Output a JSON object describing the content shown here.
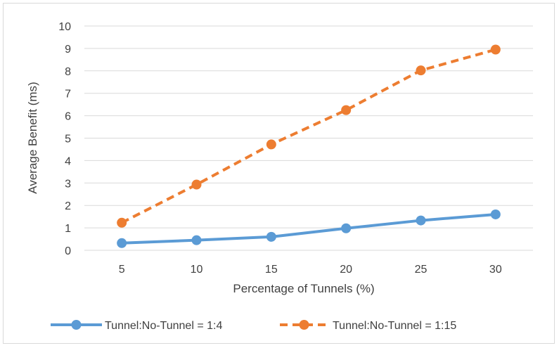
{
  "chart_data": {
    "type": "line",
    "x": [
      5,
      10,
      15,
      20,
      25,
      30
    ],
    "xlabel": "Percentage of Tunnels (%)",
    "ylabel": "Average Benefit (ms)",
    "ylim": [
      0,
      10
    ],
    "yticks": [
      0,
      1,
      2,
      3,
      4,
      5,
      6,
      7,
      8,
      9,
      10
    ],
    "grid": "horizontal",
    "legend_position": "bottom",
    "series": [
      {
        "name": "Tunnel:No-Tunnel = 1:4",
        "values": [
          0.32,
          0.45,
          0.6,
          0.98,
          1.33,
          1.6
        ],
        "color": "#5b9bd5",
        "style": "solid",
        "marker": "circle"
      },
      {
        "name": "Tunnel:No-Tunnel = 1:15",
        "values": [
          1.23,
          2.93,
          4.72,
          6.25,
          8.02,
          8.95
        ],
        "color": "#ed7d31",
        "style": "dashed",
        "marker": "circle"
      }
    ]
  }
}
